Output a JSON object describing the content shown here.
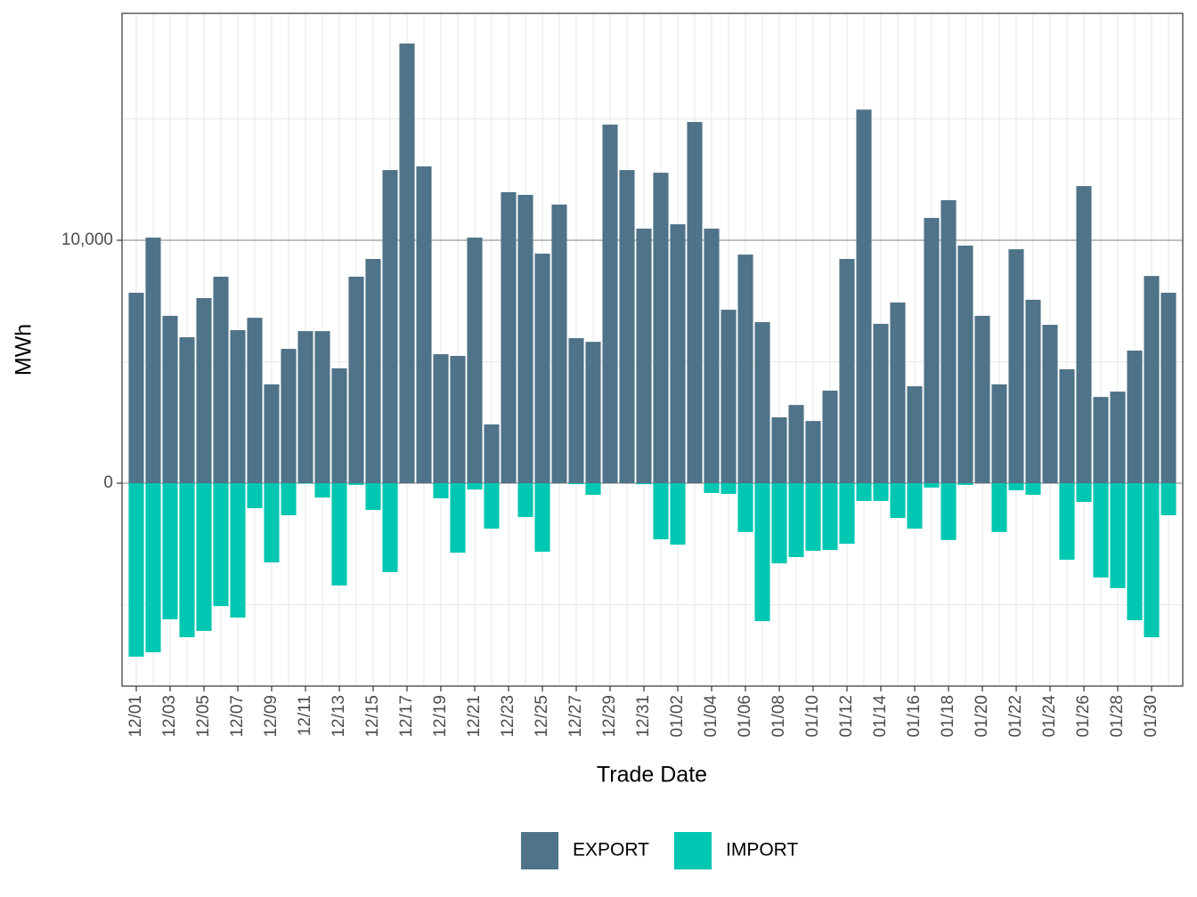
{
  "chart_data": {
    "type": "bar",
    "stacked": "diverging",
    "x_label": "Trade Date",
    "y_label": "MWh",
    "categories": [
      "12/01",
      null,
      "12/03",
      null,
      "12/05",
      null,
      "12/07",
      null,
      "12/09",
      null,
      "12/11",
      null,
      "12/13",
      null,
      "12/15",
      null,
      "12/17",
      null,
      "12/19",
      null,
      "12/21",
      null,
      "12/23",
      null,
      "12/25",
      null,
      "12/27",
      null,
      "12/29",
      null,
      "12/31",
      null,
      "01/02",
      null,
      "01/04",
      null,
      "01/06",
      null,
      "01/08",
      null,
      "01/10",
      null,
      "01/12",
      null,
      "01/14",
      null,
      "01/16",
      null,
      "01/18",
      null,
      "01/20",
      null,
      "01/22",
      null,
      "01/24",
      null,
      "01/26",
      null,
      "01/28",
      null,
      "01/30",
      null
    ],
    "series": [
      {
        "name": "EXPORT",
        "color": "#4f7388",
        "values": [
          7840,
          10110,
          6890,
          6010,
          7620,
          8500,
          6300,
          6810,
          4070,
          5530,
          6260,
          6260,
          4730,
          8500,
          9230,
          12890,
          18100,
          13040,
          5310,
          5240,
          10110,
          2420,
          11980,
          11870,
          9450,
          11470,
          5970,
          5820,
          14760,
          12890,
          10480,
          12780,
          10660,
          14870,
          10480,
          7140,
          9410,
          6630,
          2710,
          3220,
          2560,
          3810,
          9230,
          15380,
          6560,
          7440,
          3990,
          10920,
          11650,
          9780,
          6890,
          4070,
          9630,
          7550,
          6520,
          4690,
          12230,
          3550,
          3770,
          5460,
          8530,
          7840
        ]
      },
      {
        "name": "IMPORT",
        "color": "#00c7b1",
        "values": [
          -7140,
          -6960,
          -5600,
          -6340,
          -6080,
          -5060,
          -5530,
          -1030,
          -3260,
          -1320,
          -20,
          -590,
          -4210,
          -70,
          -1100,
          -3660,
          0,
          0,
          -620,
          -2860,
          -260,
          -1870,
          0,
          -1390,
          -2820,
          0,
          -40,
          -480,
          0,
          0,
          -40,
          -2310,
          -2530,
          0,
          -400,
          -440,
          -2010,
          -5680,
          -3300,
          -3040,
          -2780,
          -2750,
          -2490,
          -730,
          -730,
          -1430,
          -1870,
          -180,
          -2340,
          -70,
          0,
          -2010,
          -290,
          -480,
          0,
          -3150,
          -770,
          -3880,
          -4320,
          -5640,
          -6340,
          -1320
        ]
      }
    ],
    "ylim": [
      -8352,
      19341
    ],
    "yticks": [
      0,
      {
        "value": 10000,
        "label": "10,000"
      }
    ],
    "y_minor_ticks": [
      -5000,
      5000,
      15000
    ],
    "grid": true,
    "legend": "bottom"
  }
}
